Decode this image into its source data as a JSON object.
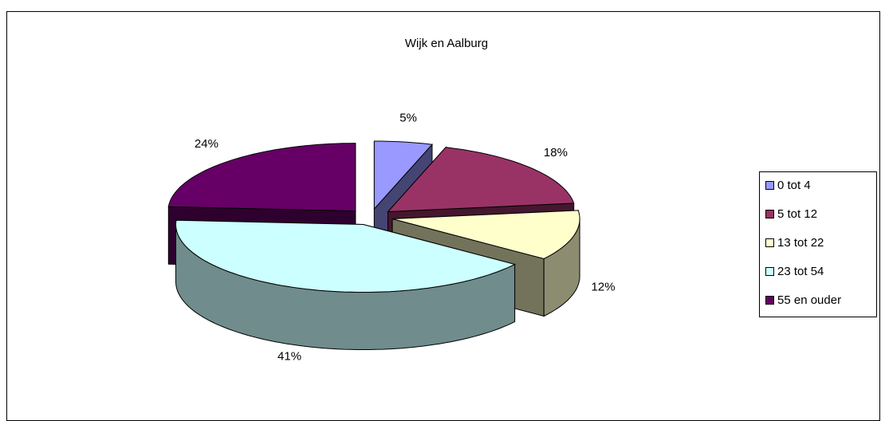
{
  "chart_data": {
    "type": "pie",
    "title": "Wijk en Aalburg",
    "categories": [
      "0 tot 4",
      "5 tot 12",
      "13 tot 22",
      "23 tot 54",
      "55 en ouder"
    ],
    "values": [
      5,
      18,
      12,
      41,
      24
    ],
    "value_labels": [
      "5%",
      "18%",
      "12%",
      "41%",
      "24%"
    ],
    "colors": [
      "#9999ff",
      "#993366",
      "#ffffcc",
      "#ccffff",
      "#660066"
    ],
    "legend": "right"
  }
}
